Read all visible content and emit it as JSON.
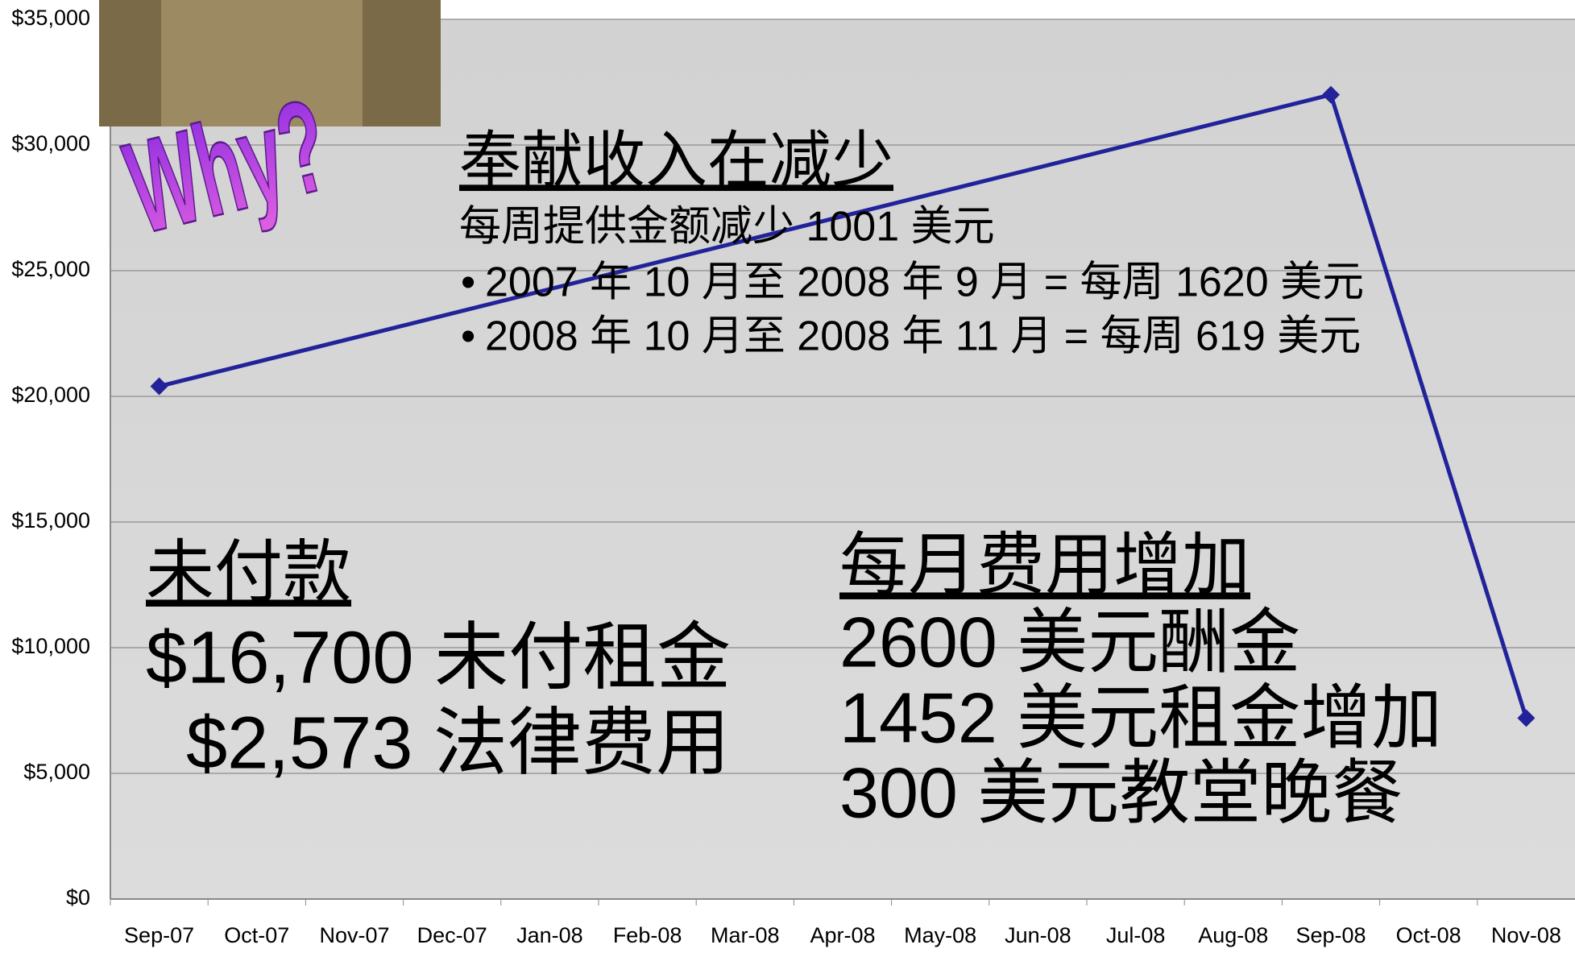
{
  "chart_data": {
    "type": "line",
    "categories": [
      "Sep-07",
      "Oct-07",
      "Nov-07",
      "Dec-07",
      "Jan-08",
      "Feb-08",
      "Mar-08",
      "Apr-08",
      "May-08",
      "Jun-08",
      "Jul-08",
      "Aug-08",
      "Sep-08",
      "Oct-08",
      "Nov-08"
    ],
    "series": [
      {
        "color": "#22229a",
        "values": [
          20400,
          null,
          null,
          null,
          null,
          null,
          null,
          null,
          null,
          null,
          null,
          null,
          32000,
          null,
          7200
        ]
      }
    ],
    "ylim": [
      0,
      35000
    ],
    "yticks": [
      {
        "value": 0,
        "label": "$0"
      },
      {
        "value": 5000,
        "label": "$5,000"
      },
      {
        "value": 10000,
        "label": "$10,000"
      },
      {
        "value": 15000,
        "label": "$15,000"
      },
      {
        "value": 20000,
        "label": "$20,000"
      },
      {
        "value": 25000,
        "label": "$25,000"
      },
      {
        "value": 30000,
        "label": "$30,000"
      },
      {
        "value": 35000,
        "label": "$35,000"
      }
    ],
    "grid": true,
    "image_text": "Why?",
    "annotations": [
      {
        "heading": "奉献收入在减少",
        "lines": [
          "每周提供金额减少 1001 美元",
          "2007 年 10 月至 2008 年 9 月 = 每周 1620 美元",
          "2008 年 10 月至 2008 年 11 月 = 每周 619 美元"
        ]
      },
      {
        "heading": "未付款",
        "lines": [
          "$16,700 未付租金",
          "$2,573 法律费用"
        ]
      },
      {
        "heading": "每月费用增加",
        "lines": [
          "2600 美元酬金",
          "1452 美元租金增加",
          "300 美元教堂晚餐"
        ]
      }
    ]
  }
}
